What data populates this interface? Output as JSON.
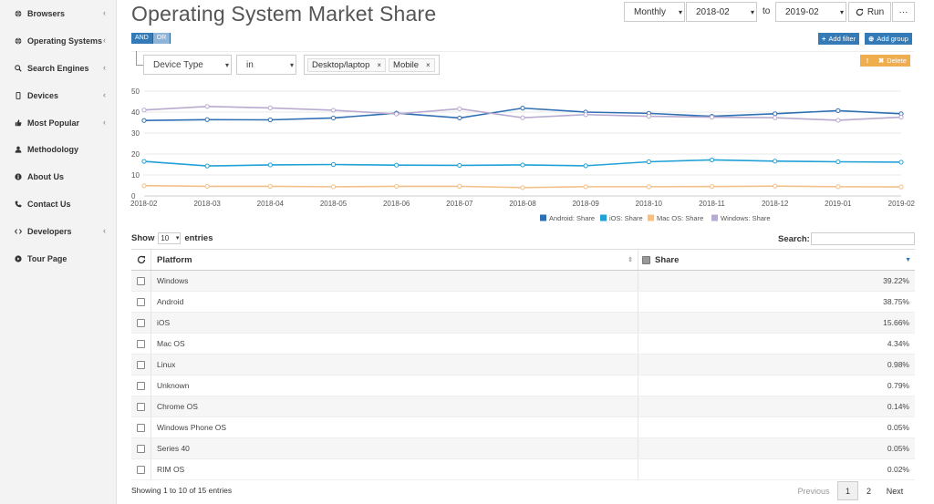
{
  "title": "Operating System Market Share",
  "sidebar": {
    "items": [
      {
        "label": "Browsers",
        "icon": "globe-icon",
        "chevron": true
      },
      {
        "label": "Operating Systems",
        "icon": "globe-icon",
        "chevron": true
      },
      {
        "label": "Search Engines",
        "icon": "search-icon",
        "chevron": true
      },
      {
        "label": "Devices",
        "icon": "mobile-icon",
        "chevron": true
      },
      {
        "label": "Most Popular",
        "icon": "thumbs-up-icon",
        "chevron": true
      },
      {
        "label": "Methodology",
        "icon": "user-icon",
        "chevron": false
      },
      {
        "label": "About Us",
        "icon": "info-icon",
        "chevron": false
      },
      {
        "label": "Contact Us",
        "icon": "phone-icon",
        "chevron": false
      },
      {
        "label": "Developers",
        "icon": "code-icon",
        "chevron": true
      },
      {
        "label": "Tour Page",
        "icon": "play-circle-icon",
        "chevron": false
      }
    ],
    "chevron_glyph": "‹"
  },
  "controls": {
    "period": "Monthly",
    "from": "2018-02",
    "to_label": "to",
    "to": "2019-02",
    "run_label": "Run",
    "more_label": "···"
  },
  "filter": {
    "and_label": "AND",
    "or_label": "OR",
    "field": "Device Type",
    "operator": "in",
    "tags": [
      "Desktop/laptop",
      "Mobile"
    ],
    "add_filter_label": "Add filter",
    "add_group_label": "Add group",
    "delete_label": "Delete"
  },
  "chart_data": {
    "type": "line",
    "x": [
      "2018-02",
      "2018-03",
      "2018-04",
      "2018-05",
      "2018-06",
      "2018-07",
      "2018-08",
      "2018-09",
      "2018-10",
      "2018-11",
      "2018-12",
      "2019-01",
      "2019-02"
    ],
    "ylim": [
      0,
      50
    ],
    "yticks": [
      0,
      10,
      20,
      30,
      40,
      50
    ],
    "grid": true,
    "legend_position": "bottom",
    "series": [
      {
        "name": "Android: Share",
        "color": "#2f6fb3",
        "values": [
          36.0,
          36.4,
          36.3,
          37.2,
          39.5,
          37.2,
          41.9,
          40.0,
          39.4,
          38.0,
          39.2,
          40.7,
          39.2
        ]
      },
      {
        "name": "iOS: Share",
        "color": "#22a1d6",
        "values": [
          16.5,
          14.3,
          14.8,
          15.0,
          14.7,
          14.6,
          14.8,
          14.4,
          16.3,
          17.2,
          16.6,
          16.3,
          16.1
        ]
      },
      {
        "name": "Mac OS: Share",
        "color": "#f3c08a",
        "values": [
          4.9,
          4.6,
          4.6,
          4.4,
          4.6,
          4.6,
          4.0,
          4.4,
          4.4,
          4.5,
          4.7,
          4.4,
          4.3
        ]
      },
      {
        "name": "Windows: Share",
        "color": "#b9aad0",
        "values": [
          41.0,
          42.7,
          42.0,
          40.9,
          39.1,
          41.6,
          37.3,
          38.8,
          38.0,
          37.6,
          37.3,
          36.1,
          37.6
        ]
      }
    ]
  },
  "table": {
    "show_label": "Show",
    "entries_value": "10",
    "entries_label": "entries",
    "search_label": "Search:",
    "columns": [
      "Platform",
      "Share"
    ],
    "rows": [
      {
        "platform": "Windows",
        "share": "39.22%"
      },
      {
        "platform": "Android",
        "share": "38.75%"
      },
      {
        "platform": "iOS",
        "share": "15.66%"
      },
      {
        "platform": "Mac OS",
        "share": "4.34%"
      },
      {
        "platform": "Linux",
        "share": "0.98%"
      },
      {
        "platform": "Unknown",
        "share": "0.79%"
      },
      {
        "platform": "Chrome OS",
        "share": "0.14%"
      },
      {
        "platform": "Windows Phone OS",
        "share": "0.05%"
      },
      {
        "platform": "Series 40",
        "share": "0.05%"
      },
      {
        "platform": "RIM OS",
        "share": "0.02%"
      }
    ],
    "info": "Showing 1 to 10 of 15 entries",
    "pager": {
      "previous": "Previous",
      "pages": [
        "1",
        "2"
      ],
      "current": "1",
      "next": "Next"
    }
  }
}
